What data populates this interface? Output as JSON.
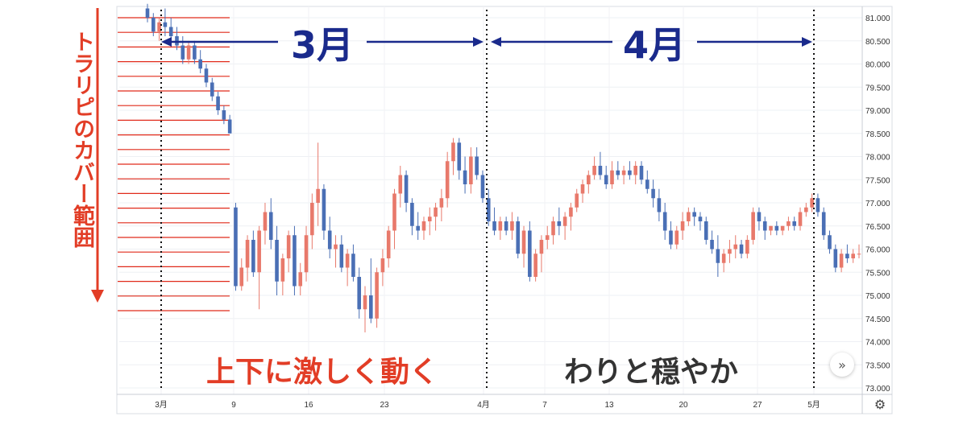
{
  "chart_data": {
    "type": "candlestick",
    "y_ticks": [
      "81.000",
      "80.500",
      "80.000",
      "79.500",
      "79.000",
      "78.500",
      "78.000",
      "77.500",
      "77.000",
      "76.500",
      "76.000",
      "75.500",
      "75.000",
      "74.500",
      "74.000",
      "73.500",
      "73.000"
    ],
    "ylim": [
      73.0,
      81.0
    ],
    "x_ticks": [
      "3月",
      "9",
      "16",
      "23",
      "4月",
      "7",
      "13",
      "20",
      "27",
      "5月"
    ],
    "candles": [
      [
        81.2,
        81.3,
        80.9,
        81.0
      ],
      [
        81.0,
        81.1,
        80.6,
        80.7
      ],
      [
        80.7,
        81.0,
        80.5,
        80.9
      ],
      [
        80.9,
        81.2,
        80.6,
        80.8
      ],
      [
        80.8,
        81.0,
        80.5,
        80.6
      ],
      [
        80.6,
        80.8,
        80.3,
        80.4
      ],
      [
        80.4,
        80.6,
        80.0,
        80.1
      ],
      [
        80.1,
        80.5,
        80.0,
        80.4
      ],
      [
        80.4,
        80.5,
        80.0,
        80.1
      ],
      [
        80.1,
        80.3,
        79.8,
        79.9
      ],
      [
        79.9,
        80.0,
        79.5,
        79.6
      ],
      [
        79.6,
        79.7,
        79.2,
        79.3
      ],
      [
        79.3,
        79.4,
        78.9,
        79.0
      ],
      [
        79.0,
        79.1,
        78.7,
        78.8
      ],
      [
        78.8,
        78.9,
        78.5,
        78.5
      ],
      [
        76.9,
        77.0,
        75.1,
        75.2
      ],
      [
        75.2,
        75.8,
        75.1,
        75.6
      ],
      [
        75.6,
        76.3,
        75.3,
        76.2
      ],
      [
        76.2,
        76.4,
        75.4,
        75.5
      ],
      [
        75.5,
        76.5,
        74.7,
        76.4
      ],
      [
        76.4,
        77.0,
        76.1,
        76.8
      ],
      [
        76.8,
        77.1,
        76.0,
        76.2
      ],
      [
        76.2,
        76.5,
        75.0,
        75.3
      ],
      [
        75.3,
        75.9,
        75.0,
        75.8
      ],
      [
        75.8,
        76.4,
        75.5,
        76.3
      ],
      [
        76.3,
        76.5,
        75.0,
        75.2
      ],
      [
        75.2,
        75.7,
        75.0,
        75.5
      ],
      [
        75.5,
        76.5,
        75.3,
        76.3
      ],
      [
        76.3,
        77.2,
        76.0,
        77.0
      ],
      [
        77.0,
        78.3,
        76.5,
        77.3
      ],
      [
        77.3,
        77.4,
        76.2,
        76.4
      ],
      [
        76.4,
        76.7,
        75.8,
        76.0
      ],
      [
        76.0,
        76.3,
        75.6,
        76.1
      ],
      [
        76.1,
        76.3,
        75.5,
        75.6
      ],
      [
        75.6,
        76.0,
        75.2,
        75.9
      ],
      [
        75.9,
        76.1,
        75.3,
        75.4
      ],
      [
        75.4,
        75.6,
        74.5,
        74.7
      ],
      [
        74.7,
        75.2,
        74.2,
        75.0
      ],
      [
        75.0,
        75.8,
        74.4,
        74.5
      ],
      [
        74.5,
        75.6,
        74.3,
        75.5
      ],
      [
        75.5,
        76.0,
        75.2,
        75.8
      ],
      [
        75.8,
        76.5,
        75.6,
        76.4
      ],
      [
        76.4,
        77.3,
        76.0,
        77.2
      ],
      [
        77.2,
        77.8,
        76.9,
        77.6
      ],
      [
        77.6,
        77.7,
        76.8,
        77.0
      ],
      [
        77.0,
        77.1,
        76.3,
        76.5
      ],
      [
        76.5,
        76.8,
        76.2,
        76.4
      ],
      [
        76.4,
        76.7,
        76.2,
        76.6
      ],
      [
        76.6,
        76.9,
        76.3,
        76.7
      ],
      [
        76.7,
        77.0,
        76.4,
        76.9
      ],
      [
        76.9,
        77.3,
        76.6,
        77.1
      ],
      [
        77.1,
        78.1,
        76.9,
        77.9
      ],
      [
        77.9,
        78.4,
        77.6,
        78.3
      ],
      [
        78.3,
        78.4,
        77.5,
        77.7
      ],
      [
        77.7,
        78.0,
        77.2,
        77.4
      ],
      [
        77.4,
        78.2,
        77.2,
        78.0
      ],
      [
        78.0,
        78.2,
        77.5,
        77.6
      ],
      [
        77.6,
        77.7,
        77.0,
        77.1
      ],
      [
        77.1,
        77.3,
        76.5,
        76.6
      ],
      [
        76.6,
        76.9,
        76.3,
        76.4
      ],
      [
        76.4,
        76.7,
        76.2,
        76.6
      ],
      [
        76.6,
        76.7,
        76.3,
        76.4
      ],
      [
        76.4,
        76.8,
        76.2,
        76.6
      ],
      [
        76.6,
        76.7,
        75.8,
        75.9
      ],
      [
        75.9,
        76.5,
        75.6,
        76.4
      ],
      [
        76.4,
        76.6,
        75.3,
        75.4
      ],
      [
        75.4,
        76.0,
        75.3,
        75.9
      ],
      [
        75.9,
        76.3,
        75.5,
        76.2
      ],
      [
        76.2,
        76.5,
        76.0,
        76.3
      ],
      [
        76.3,
        76.7,
        76.1,
        76.6
      ],
      [
        76.6,
        76.9,
        76.3,
        76.5
      ],
      [
        76.5,
        76.8,
        76.2,
        76.7
      ],
      [
        76.7,
        77.0,
        76.4,
        76.9
      ],
      [
        76.9,
        77.3,
        76.8,
        77.2
      ],
      [
        77.2,
        77.5,
        77.0,
        77.4
      ],
      [
        77.4,
        77.7,
        77.2,
        77.6
      ],
      [
        77.6,
        78.0,
        77.5,
        77.8
      ],
      [
        77.8,
        78.1,
        77.5,
        77.6
      ],
      [
        77.6,
        77.8,
        77.3,
        77.4
      ],
      [
        77.4,
        77.9,
        77.3,
        77.7
      ],
      [
        77.7,
        77.9,
        77.5,
        77.6
      ],
      [
        77.6,
        77.8,
        77.4,
        77.7
      ],
      [
        77.7,
        77.9,
        77.5,
        77.6
      ],
      [
        77.6,
        77.9,
        77.4,
        77.8
      ],
      [
        77.8,
        77.9,
        77.4,
        77.5
      ],
      [
        77.5,
        77.7,
        77.2,
        77.3
      ],
      [
        77.3,
        77.5,
        76.9,
        77.1
      ],
      [
        77.1,
        77.3,
        76.6,
        76.8
      ],
      [
        76.8,
        77.0,
        76.2,
        76.4
      ],
      [
        76.4,
        76.6,
        76.0,
        76.1
      ],
      [
        76.1,
        76.5,
        76.0,
        76.4
      ],
      [
        76.4,
        76.8,
        76.2,
        76.6
      ],
      [
        76.6,
        76.9,
        76.5,
        76.8
      ],
      [
        76.8,
        76.9,
        76.5,
        76.7
      ],
      [
        76.7,
        76.8,
        76.4,
        76.6
      ],
      [
        76.6,
        76.7,
        76.1,
        76.2
      ],
      [
        76.2,
        76.4,
        75.9,
        76.0
      ],
      [
        76.0,
        76.3,
        75.4,
        75.7
      ],
      [
        75.7,
        76.0,
        75.5,
        75.9
      ],
      [
        75.9,
        76.2,
        75.7,
        76.0
      ],
      [
        76.0,
        76.3,
        75.8,
        76.1
      ],
      [
        76.1,
        76.2,
        75.8,
        75.9
      ],
      [
        75.9,
        76.3,
        75.8,
        76.2
      ],
      [
        76.2,
        76.9,
        76.1,
        76.8
      ],
      [
        76.8,
        76.9,
        76.4,
        76.6
      ],
      [
        76.6,
        76.7,
        76.2,
        76.4
      ],
      [
        76.4,
        76.5,
        76.3,
        76.5
      ],
      [
        76.5,
        76.6,
        76.3,
        76.4
      ],
      [
        76.4,
        76.5,
        76.3,
        76.5
      ],
      [
        76.5,
        76.7,
        76.4,
        76.6
      ],
      [
        76.6,
        76.7,
        76.4,
        76.5
      ],
      [
        76.5,
        76.9,
        76.4,
        76.8
      ],
      [
        76.8,
        77.0,
        76.7,
        76.9
      ],
      [
        76.9,
        77.2,
        76.8,
        77.1
      ],
      [
        77.1,
        77.2,
        76.7,
        76.8
      ],
      [
        76.8,
        76.9,
        76.2,
        76.3
      ],
      [
        76.3,
        76.4,
        75.9,
        76.0
      ],
      [
        76.0,
        76.1,
        75.5,
        75.6
      ],
      [
        75.6,
        76.0,
        75.5,
        75.9
      ],
      [
        75.9,
        76.1,
        75.7,
        75.8
      ],
      [
        75.8,
        76.0,
        75.7,
        75.9
      ],
      [
        75.9,
        76.1,
        75.8,
        75.9
      ]
    ],
    "up_color": "#e8796b",
    "down_color": "#4a6fb5",
    "grid": true,
    "annotations": {
      "month_march": "3月",
      "month_april": "4月",
      "phase_march": "上下に激しく動く",
      "phase_april": "わりと穏やか",
      "side_label": "トラリピのカバー範囲"
    },
    "annotation_colors": {
      "arrow_blue": "#1a2a8c",
      "red_text": "#e23d26",
      "dark_text": "#333333",
      "trap_lines": "#e02a1a"
    }
  },
  "ui": {
    "scroll_icon": "double-chevron-right-icon",
    "scroll_glyph": "»",
    "settings_icon": "gear-icon",
    "settings_glyph": "⚙"
  }
}
